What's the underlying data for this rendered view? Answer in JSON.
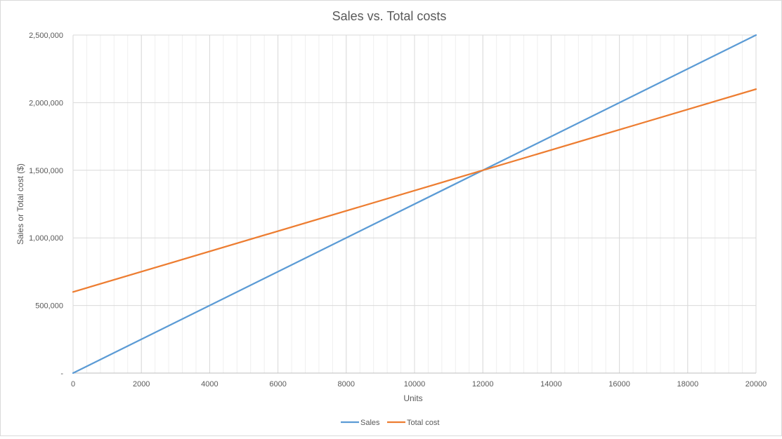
{
  "chart_data": {
    "type": "line",
    "title": "Sales vs. Total costs",
    "xlabel": "Units",
    "ylabel": "Sales or Total cost ($)",
    "xlim": [
      0,
      20000
    ],
    "ylim": [
      0,
      2500000
    ],
    "x_ticks": [
      0,
      2000,
      4000,
      6000,
      8000,
      10000,
      12000,
      14000,
      16000,
      18000,
      20000
    ],
    "x_tick_labels": [
      "0",
      "2000",
      "4000",
      "6000",
      "8000",
      "10000",
      "12000",
      "14000",
      "16000",
      "18000",
      "20000"
    ],
    "y_ticks": [
      0,
      500000,
      1000000,
      1500000,
      2000000,
      2500000
    ],
    "y_tick_labels": [
      "-",
      "500,000",
      "1,000,000",
      "1,500,000",
      "2,000,000",
      "2,500,000"
    ],
    "x_minor_gridlines": true,
    "grid": true,
    "legend_position": "bottom",
    "series": [
      {
        "name": "Sales",
        "color": "#5B9BD5",
        "x": [
          0,
          20000
        ],
        "y": [
          0,
          2500000
        ]
      },
      {
        "name": "Total cost",
        "color": "#ED7D31",
        "x": [
          0,
          20000
        ],
        "y": [
          600000,
          2100000
        ]
      }
    ]
  }
}
